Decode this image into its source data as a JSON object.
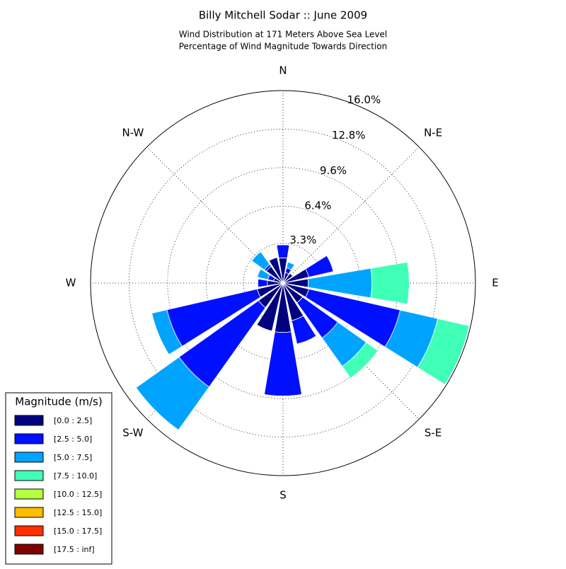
{
  "chart_data": {
    "type": "windrose",
    "title": "Billy Mitchell Sodar :: June 2009",
    "subtitle": [
      "Wind Distribution at 171 Meters Above Sea Level",
      "Percentage of Wind Magnitude Towards Direction"
    ],
    "categories": [
      "N",
      null,
      "N-E",
      null,
      "E",
      null,
      "S-E",
      null,
      "S",
      null,
      "S-W",
      null,
      "W",
      null,
      "N-W",
      null
    ],
    "rlim": [
      0,
      16
    ],
    "rticks": [
      {
        "value": 3.3,
        "label": "3.3%"
      },
      {
        "value": 6.4,
        "label": "6.4%"
      },
      {
        "value": 9.6,
        "label": "9.6%"
      },
      {
        "value": 12.8,
        "label": "12.8%"
      },
      {
        "value": 16.0,
        "label": "16.0%"
      }
    ],
    "legend_title": "Magnitude (m/s)",
    "legend_position": "lower left",
    "series": [
      {
        "name": "[0.0 : 2.5]",
        "color": "#000080",
        "values": [
          2.1,
          0.9,
          1.0,
          2.2,
          2.1,
          2.2,
          2.0,
          3.2,
          4.1,
          4.1,
          2.5,
          2.2,
          1.3,
          0.8,
          1.7,
          2.2
        ]
      },
      {
        "name": "[2.5 : 5.0]",
        "color": "#0010ff",
        "values": [
          1.1,
          0.4,
          0,
          2.1,
          0,
          7.8,
          3.6,
          2.0,
          5.3,
          0,
          8.1,
          7.7,
          0.8,
          0.5,
          0.2,
          0
        ]
      },
      {
        "name": "[5.0 : 7.5]",
        "color": "#00a4ff",
        "values": [
          0,
          0.5,
          0,
          0,
          5.3,
          3.2,
          2.9,
          0,
          0,
          0,
          4.4,
          1.3,
          0,
          0.9,
          1.3,
          0
        ]
      },
      {
        "name": "[7.5 : 10.0]",
        "color": "#40ffb7",
        "values": [
          0,
          0,
          0,
          0,
          3.1,
          2.7,
          1.2,
          0,
          0,
          0,
          0,
          0,
          0,
          0,
          0,
          0
        ]
      },
      {
        "name": "[10.0 : 12.5]",
        "color": "#b3ff40",
        "values": [
          0,
          0,
          0,
          0,
          0,
          0,
          0,
          0,
          0,
          0,
          0,
          0,
          0,
          0,
          0,
          0
        ]
      },
      {
        "name": "[12.5 : 15.0]",
        "color": "#ffbd00",
        "values": [
          0,
          0,
          0,
          0,
          0,
          0,
          0,
          0,
          0,
          0,
          0,
          0,
          0,
          0,
          0,
          0
        ]
      },
      {
        "name": "[15.0 : 17.5]",
        "color": "#ff3000",
        "values": [
          0,
          0,
          0,
          0,
          0,
          0,
          0,
          0,
          0,
          0,
          0,
          0,
          0,
          0,
          0,
          0
        ]
      },
      {
        "name": "[17.5 : inf]",
        "color": "#800000",
        "values": [
          0,
          0,
          0,
          0,
          0,
          0,
          0,
          0,
          0,
          0,
          0,
          0,
          0,
          0,
          0,
          0
        ]
      }
    ]
  }
}
